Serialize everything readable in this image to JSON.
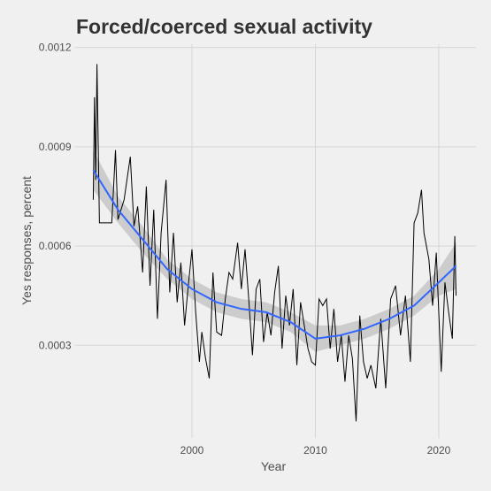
{
  "chart_data": {
    "type": "line",
    "title": "Forced/coerced sexual activity",
    "x_label": "Year",
    "y_label": "Yes responses, percent",
    "xlim": [
      1990.5,
      2023
    ],
    "xticks": [
      2000,
      2010,
      2020
    ],
    "ylim": [
      2e-05,
      0.00121
    ],
    "yticks": [
      0.0003,
      0.0006,
      0.0009,
      0.0012
    ],
    "grid": true,
    "x": [
      1992.0,
      1992.1,
      1992.2,
      1992.3,
      1992.5,
      1993.0,
      1993.5,
      1993.8,
      1994.0,
      1994.5,
      1995.0,
      1995.3,
      1995.6,
      1996.0,
      1996.3,
      1996.6,
      1996.9,
      1997.2,
      1997.5,
      1997.9,
      1998.2,
      1998.5,
      1998.8,
      1999.1,
      1999.4,
      1999.7,
      2000.0,
      2000.3,
      2000.6,
      2000.8,
      2001.1,
      2001.4,
      2001.7,
      2002.0,
      2002.4,
      2002.7,
      2003.0,
      2003.3,
      2003.7,
      2004.0,
      2004.3,
      2004.6,
      2004.9,
      2005.2,
      2005.5,
      2005.8,
      2006.1,
      2006.4,
      2006.7,
      2007.0,
      2007.3,
      2007.6,
      2007.9,
      2008.2,
      2008.5,
      2008.8,
      2009.1,
      2009.4,
      2009.7,
      2010.0,
      2010.3,
      2010.6,
      2010.9,
      2011.2,
      2011.5,
      2011.8,
      2012.1,
      2012.4,
      2012.7,
      2013.0,
      2013.3,
      2013.6,
      2013.9,
      2014.2,
      2014.5,
      2014.9,
      2015.3,
      2015.7,
      2016.1,
      2016.5,
      2016.9,
      2017.3,
      2017.7,
      2018.0,
      2018.3,
      2018.6,
      2018.8,
      2019.2,
      2019.5,
      2019.8,
      2020.2,
      2020.5,
      2020.8,
      2021.1,
      2021.3,
      2021.4
    ],
    "series": [
      {
        "color": "#000000",
        "values": [
          0.00074,
          0.00105,
          0.0008,
          0.00115,
          0.00067,
          0.00067,
          0.00067,
          0.00089,
          0.00068,
          0.00074,
          0.00087,
          0.00066,
          0.00072,
          0.00052,
          0.00078,
          0.00048,
          0.00071,
          0.00038,
          0.00064,
          0.0008,
          0.00046,
          0.00064,
          0.00043,
          0.00055,
          0.00036,
          0.00048,
          0.00059,
          0.0004,
          0.00025,
          0.00034,
          0.00026,
          0.0002,
          0.00052,
          0.00034,
          0.00033,
          0.00044,
          0.00052,
          0.0005,
          0.00061,
          0.00047,
          0.00059,
          0.00044,
          0.00027,
          0.00047,
          0.0005,
          0.00031,
          0.0004,
          0.00033,
          0.00046,
          0.00054,
          0.00029,
          0.00045,
          0.00036,
          0.00047,
          0.00024,
          0.00043,
          0.00036,
          0.00029,
          0.00025,
          0.00024,
          0.00044,
          0.00042,
          0.00044,
          0.00029,
          0.00041,
          0.00025,
          0.00033,
          0.00019,
          0.00033,
          0.00026,
          7e-05,
          0.00039,
          0.00025,
          0.0002,
          0.00024,
          0.00017,
          0.00038,
          0.00017,
          0.00044,
          0.00048,
          0.00033,
          0.00045,
          0.00025,
          0.00067,
          0.0007,
          0.00077,
          0.00064,
          0.00056,
          0.00042,
          0.00058,
          0.00022,
          0.00049,
          0.0004,
          0.00032,
          0.00063,
          0.00045
        ]
      }
    ],
    "smooth": {
      "color": "#3366ff",
      "band_color": "#c8c8c8",
      "x": [
        1992,
        1994,
        1996,
        1998,
        2000,
        2002,
        2004,
        2006,
        2008,
        2010,
        2012,
        2014,
        2016,
        2018,
        2020,
        2021.4
      ],
      "values": [
        0.00083,
        0.00071,
        0.00062,
        0.00053,
        0.00047,
        0.00043,
        0.00041,
        0.0004,
        0.00037,
        0.00032,
        0.00033,
        0.00035,
        0.00038,
        0.00042,
        0.00049,
        0.00054
      ],
      "lower": [
        0.00077,
        0.00067,
        0.00058,
        0.0005,
        0.00044,
        0.0004,
        0.00038,
        0.00037,
        0.00034,
        0.00028,
        0.0003,
        0.00032,
        0.00035,
        0.00039,
        0.00045,
        0.00047
      ],
      "upper": [
        0.00089,
        0.00075,
        0.00066,
        0.00056,
        0.0005,
        0.00046,
        0.00044,
        0.00043,
        0.0004,
        0.00036,
        0.00036,
        0.00038,
        0.00041,
        0.00045,
        0.00053,
        0.00061
      ]
    }
  }
}
